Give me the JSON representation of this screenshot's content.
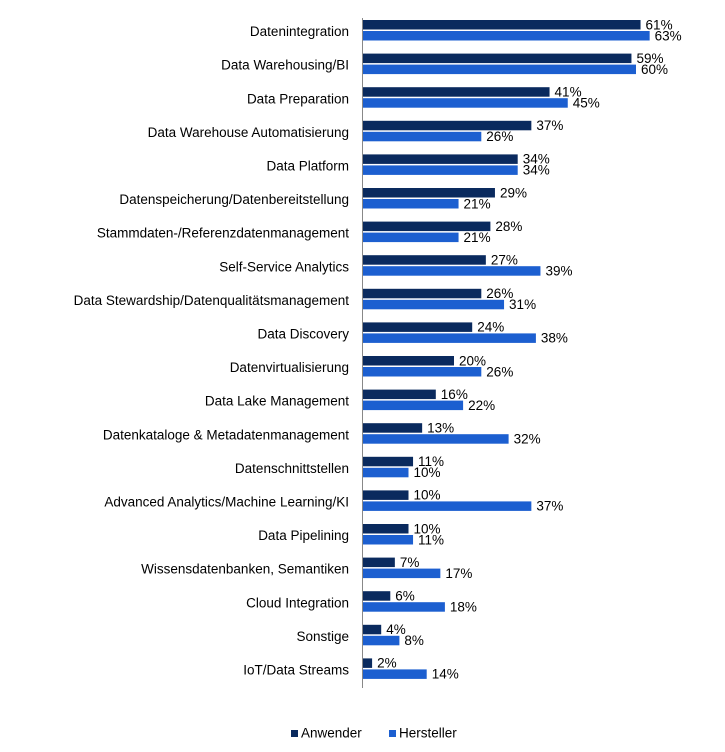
{
  "chart_data": {
    "type": "bar",
    "orientation": "horizontal",
    "title": "",
    "xlabel": "",
    "ylabel": "",
    "xlim": [
      0,
      70
    ],
    "grid": false,
    "legend_position": "bottom",
    "unit_suffix": "%",
    "categories": [
      "Datenintegration",
      "Data Warehousing/BI",
      "Data Preparation",
      "Data Warehouse Automatisierung",
      "Data Platform",
      "Datenspeicherung/Datenbereitstellung",
      "Stammdaten-/Referenzdatenmanagement",
      "Self-Service Analytics",
      "Data Stewardship/Datenqualitätsmanagement",
      "Data Discovery",
      "Datenvirtualisierung",
      "Data Lake Management",
      "Datenkataloge & Metadatenmanagement",
      "Datenschnittstellen",
      "Advanced Analytics/Machine Learning/KI",
      "Data Pipelining",
      "Wissensdatenbanken, Semantiken",
      "Cloud Integration",
      "Sonstige",
      "IoT/Data Streams"
    ],
    "series": [
      {
        "name": "Anwender",
        "color": "#0a2a5e",
        "values": [
          61,
          59,
          41,
          37,
          34,
          29,
          28,
          27,
          26,
          24,
          20,
          16,
          13,
          11,
          10,
          10,
          7,
          6,
          4,
          2
        ]
      },
      {
        "name": "Hersteller",
        "color": "#1c5fd0",
        "values": [
          63,
          60,
          45,
          26,
          34,
          21,
          21,
          39,
          31,
          38,
          26,
          22,
          32,
          10,
          37,
          11,
          17,
          18,
          8,
          14
        ]
      }
    ]
  }
}
